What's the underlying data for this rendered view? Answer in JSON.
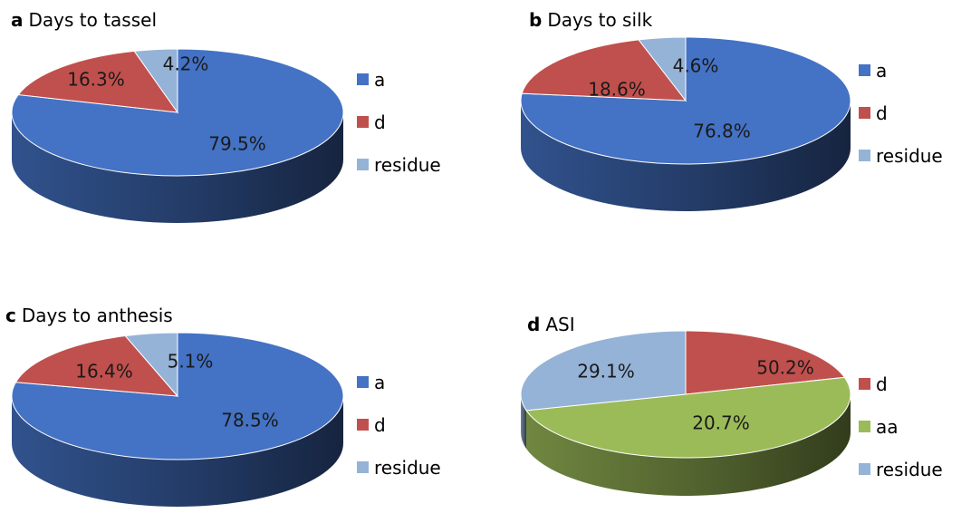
{
  "colors": {
    "a": "#4472C4",
    "d": "#C0504D",
    "aa": "#9BBB59",
    "residue": "#95B3D7"
  },
  "chart_data": [
    {
      "type": "pie",
      "panel_letter": "a",
      "title": "Days to tassel",
      "categories": [
        "a",
        "d",
        "residue"
      ],
      "values": [
        79.5,
        16.3,
        4.2
      ],
      "labels": [
        "79.5%",
        "16.3%",
        "4.2%"
      ],
      "legend": [
        "a",
        "d",
        "residue"
      ],
      "legend_placement": "right"
    },
    {
      "type": "pie",
      "panel_letter": "b",
      "title": "Days to silk",
      "categories": [
        "a",
        "d",
        "residue"
      ],
      "values": [
        76.8,
        18.6,
        4.6
      ],
      "labels": [
        "76.8%",
        "18.6%",
        "4.6%"
      ],
      "legend": [
        "a",
        "d",
        "residue"
      ],
      "legend_placement": "right"
    },
    {
      "type": "pie",
      "panel_letter": "c",
      "title": "Days to anthesis",
      "categories": [
        "a",
        "d",
        "residue"
      ],
      "values": [
        78.5,
        16.4,
        5.1
      ],
      "labels": [
        "78.5%",
        "16.4%",
        "5.1%"
      ],
      "legend": [
        "a",
        "d",
        "residue"
      ],
      "legend_placement": "right"
    },
    {
      "type": "pie",
      "panel_letter": "d",
      "title": "ASI",
      "categories": [
        "d",
        "aa",
        "residue"
      ],
      "values": [
        20.7,
        50.2,
        29.1
      ],
      "labels": [
        "20.7%",
        "50.2%",
        "29.1%"
      ],
      "legend": [
        "d",
        "aa",
        "residue"
      ],
      "legend_placement": "right"
    }
  ]
}
